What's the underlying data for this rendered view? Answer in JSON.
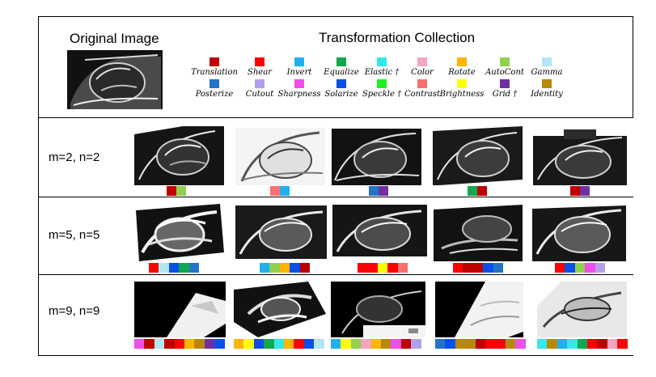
{
  "header": {
    "original_title": "Original Image",
    "collection_title": "Transformation Collection"
  },
  "legend": [
    {
      "name": "Translation",
      "color": "#c00000"
    },
    {
      "name": "Shear",
      "color": "#ff0000"
    },
    {
      "name": "Invert",
      "color": "#1fb0ee"
    },
    {
      "name": "Equalize",
      "color": "#0fa84f"
    },
    {
      "name": "Elastic †",
      "color": "#33e8e8"
    },
    {
      "name": "Color",
      "color": "#f5a5c0"
    },
    {
      "name": "Rotate",
      "color": "#ffb400"
    },
    {
      "name": "AutoCont",
      "color": "#92d050"
    },
    {
      "name": "Gamma",
      "color": "#b4e5f5"
    },
    {
      "name": "Posterize",
      "color": "#2274c4"
    },
    {
      "name": "Cutout",
      "color": "#b4a0ea"
    },
    {
      "name": "Sharpness",
      "color": "#f04ee8"
    },
    {
      "name": "Solarize",
      "color": "#0a50e8"
    },
    {
      "name": "Speckle †",
      "color": "#20f020"
    },
    {
      "name": "Contrast",
      "color": "#f87070"
    },
    {
      "name": "Brightness",
      "color": "#ffff00"
    },
    {
      "name": "Grid †",
      "color": "#7030a0"
    },
    {
      "name": "Identity",
      "color": "#b8880a"
    }
  ],
  "rows": [
    {
      "label": "m=2, n=2",
      "samples": [
        [
          "#c00000",
          "#92d050"
        ],
        [
          "#f87070",
          "#1fb0ee"
        ],
        [
          "#2274c4",
          "#7030a0"
        ],
        [
          "#0fa84f",
          "#c00000"
        ],
        [
          "#c00000",
          "#7030a0"
        ]
      ]
    },
    {
      "label": "m=5, n=5",
      "samples": [
        [
          "#ff0000",
          "#b4e5f5",
          "#0a50e8",
          "#0fa84f",
          "#2274c4"
        ],
        [
          "#1fb0ee",
          "#92d050",
          "#ffb400",
          "#0a50e8",
          "#c00000"
        ],
        [
          "#ff0000",
          "#ff0000",
          "#ffff00",
          "#ff0000",
          "#f87070"
        ],
        [
          "#ff0000",
          "#c00000",
          "#c00000",
          "#0a50e8",
          "#2274c4"
        ],
        [
          "#ff0000",
          "#0a50e8",
          "#92d050",
          "#f04ee8",
          "#b4a0ea"
        ]
      ]
    },
    {
      "label": "m=9, n=9",
      "samples": [
        [
          "#f04ee8",
          "#c00000",
          "#b4e5f5",
          "#c00000",
          "#ff0000",
          "#ffb400",
          "#b8880a",
          "#7030a0",
          "#0a50e8"
        ],
        [
          "#ffb400",
          "#ffff00",
          "#0a50e8",
          "#0fa84f",
          "#33e8e8",
          "#ffb400",
          "#ff0000",
          "#0a50e8",
          "#b4e5f5"
        ],
        [
          "#1fb0ee",
          "#ffff00",
          "#92d050",
          "#f5a5c0",
          "#ffb400",
          "#b8880a",
          "#f04ee8",
          "#c00000",
          "#b4a0ea"
        ],
        [
          "#2274c4",
          "#0a50e8",
          "#b8880a",
          "#b8880a",
          "#c00000",
          "#ff0000",
          "#ff0000",
          "#b8880a",
          "#f04ee8"
        ],
        [
          "#33e8e8",
          "#b8880a",
          "#1fb0ee",
          "#33e8e8",
          "#0fa84f",
          "#ff0000",
          "#c00000",
          "#f5a5c0",
          "#ff0000"
        ]
      ]
    }
  ]
}
